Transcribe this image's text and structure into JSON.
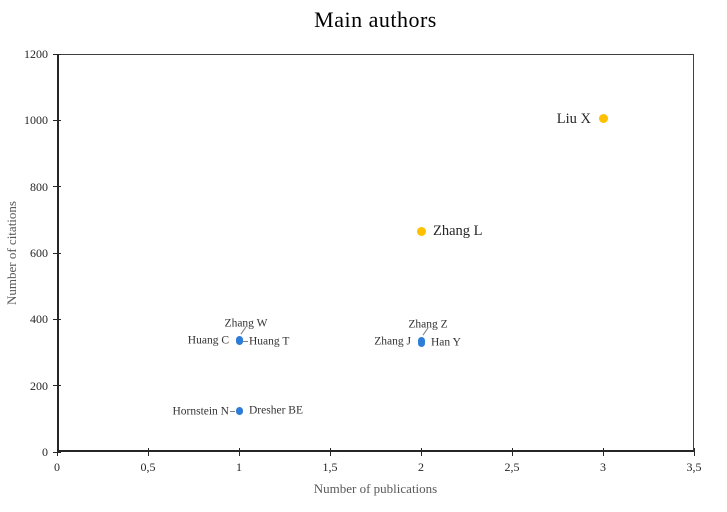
{
  "page": {
    "title": "Main authors"
  },
  "chart_data": {
    "type": "scatter",
    "title": "Main authors",
    "xlabel": "Number of publications",
    "ylabel": "Number of citations",
    "xlim": [
      0,
      3.5
    ],
    "ylim": [
      0,
      1200
    ],
    "grid": false,
    "legend": false,
    "decimal_separator": ",",
    "x_ticks": {
      "values": [
        0,
        0.5,
        1,
        1.5,
        2,
        2.5,
        3,
        3.5
      ],
      "labels": [
        "0",
        "0,5",
        "1",
        "1,5",
        "2",
        "2,5",
        "3",
        "3,5"
      ]
    },
    "y_ticks": {
      "values": [
        0,
        200,
        400,
        600,
        800,
        1000,
        1200
      ],
      "labels": [
        "0",
        "200",
        "400",
        "600",
        "800",
        "1000",
        "1200"
      ]
    },
    "palette": {
      "highlight": "#FFC000",
      "default": "#2D7DD6"
    },
    "points": [
      {
        "label": "Liu X",
        "x": 3,
        "y": 1005,
        "color": "#FFC000",
        "label_pos": "left",
        "label_size": "large",
        "leader": null
      },
      {
        "label": "Zhang L",
        "x": 2,
        "y": 665,
        "color": "#FFC000",
        "label_pos": "right",
        "label_size": "large",
        "leader": null
      },
      {
        "label": "Zhang W",
        "x": 1,
        "y": 340,
        "color": "#2D7DD6",
        "label_pos": "above",
        "label_size": "small",
        "leader": "diag"
      },
      {
        "label": "Huang C",
        "x": 1,
        "y": 336,
        "color": "#2D7DD6",
        "label_pos": "left",
        "label_size": "small",
        "leader": null
      },
      {
        "label": "Huang T",
        "x": 1,
        "y": 332,
        "color": "#2D7DD6",
        "label_pos": "right",
        "label_size": "small",
        "leader": "dash-right"
      },
      {
        "label": "Zhang Z",
        "x": 2,
        "y": 337,
        "color": "#2D7DD6",
        "label_pos": "above",
        "label_size": "small",
        "leader": "diag"
      },
      {
        "label": "Zhang J",
        "x": 2,
        "y": 333,
        "color": "#2D7DD6",
        "label_pos": "left",
        "label_size": "small",
        "leader": null
      },
      {
        "label": "Han Y",
        "x": 2,
        "y": 328,
        "color": "#2D7DD6",
        "label_pos": "right",
        "label_size": "small",
        "leader": null
      },
      {
        "label": "Hornstein N",
        "x": 1,
        "y": 122,
        "color": "#2D7DD6",
        "label_pos": "left",
        "label_size": "small",
        "leader": "dash-left"
      },
      {
        "label": "Dresher BE",
        "x": 1,
        "y": 125,
        "color": "#2D7DD6",
        "label_pos": "right",
        "label_size": "small",
        "leader": null
      }
    ]
  }
}
